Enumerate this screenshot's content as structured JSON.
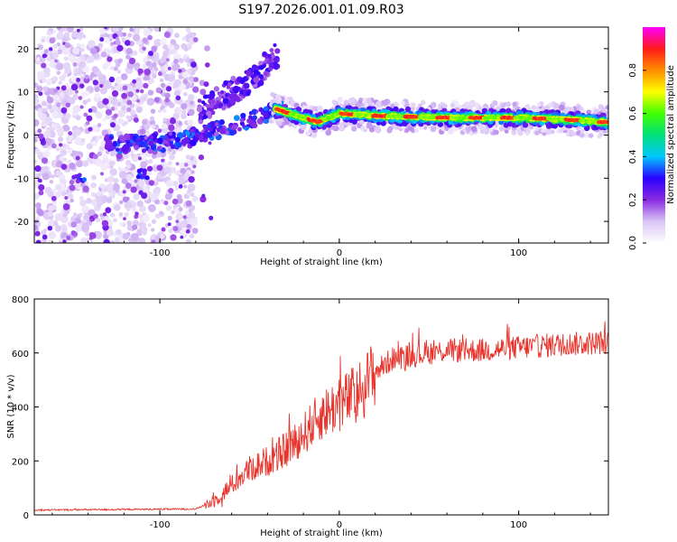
{
  "title": "S197.2026.001.01.09.R03",
  "chart_data": [
    {
      "type": "heatmap",
      "xlabel": "Height of straight line (km)",
      "ylabel": "Frequency (Hz)",
      "xlim": [
        -170,
        150
      ],
      "ylim": [
        -25,
        25
      ],
      "xticks": [
        -100,
        0,
        100
      ],
      "yticks": [
        -20,
        -10,
        0,
        10,
        20
      ],
      "colorbar": {
        "label": "Normalized spectral amplitude",
        "range": [
          0.0,
          1.0
        ],
        "ticks": [
          "0.0",
          "0.2",
          "0.4",
          "0.6",
          "0.8"
        ],
        "colors": [
          "#ffffff",
          "#d9c4f5",
          "#8a2be2",
          "#2a00ff",
          "#00c8ff",
          "#00e07a",
          "#40ff00",
          "#ffff00",
          "#ff8c00",
          "#ff1a1a",
          "#ff00ff"
        ]
      },
      "features": {
        "scatter_region_x": [
          -170,
          -80
        ],
        "rising_trend": [
          [
            -100,
            -2
          ],
          [
            -80,
            0
          ],
          [
            -60,
            2
          ],
          [
            -45,
            4
          ],
          [
            -35,
            6
          ]
        ],
        "upper_arm": [
          [
            -75,
            6
          ],
          [
            -60,
            10
          ],
          [
            -45,
            14
          ],
          [
            -38,
            18
          ]
        ],
        "lower_blobs": [
          [
            -145,
            -10
          ],
          [
            -110,
            -9
          ]
        ],
        "stable_band": [
          [
            -35,
            6
          ],
          [
            -20,
            4
          ],
          [
            -12,
            3
          ],
          [
            0,
            5
          ],
          [
            20,
            4.5
          ],
          [
            60,
            4
          ],
          [
            100,
            4
          ],
          [
            130,
            3.5
          ],
          [
            148,
            3
          ]
        ]
      }
    },
    {
      "type": "line",
      "xlabel": "Height of straight line (km)",
      "ylabel": "SNR (10 * v/v)",
      "xlim": [
        -170,
        150
      ],
      "ylim": [
        0,
        800
      ],
      "xticks": [
        -100,
        0,
        100
      ],
      "yticks": [
        0,
        200,
        400,
        600,
        800
      ],
      "series_color": "#e8322a",
      "envelope": [
        [
          -170,
          18
        ],
        [
          -80,
          22
        ],
        [
          -70,
          50
        ],
        [
          -60,
          110
        ],
        [
          -50,
          170
        ],
        [
          -40,
          200
        ],
        [
          -30,
          240
        ],
        [
          -20,
          300
        ],
        [
          -10,
          370
        ],
        [
          0,
          410
        ],
        [
          10,
          450
        ],
        [
          20,
          530
        ],
        [
          30,
          580
        ],
        [
          40,
          590
        ],
        [
          60,
          610
        ],
        [
          80,
          610
        ],
        [
          100,
          620
        ],
        [
          120,
          630
        ],
        [
          150,
          640
        ]
      ]
    }
  ]
}
